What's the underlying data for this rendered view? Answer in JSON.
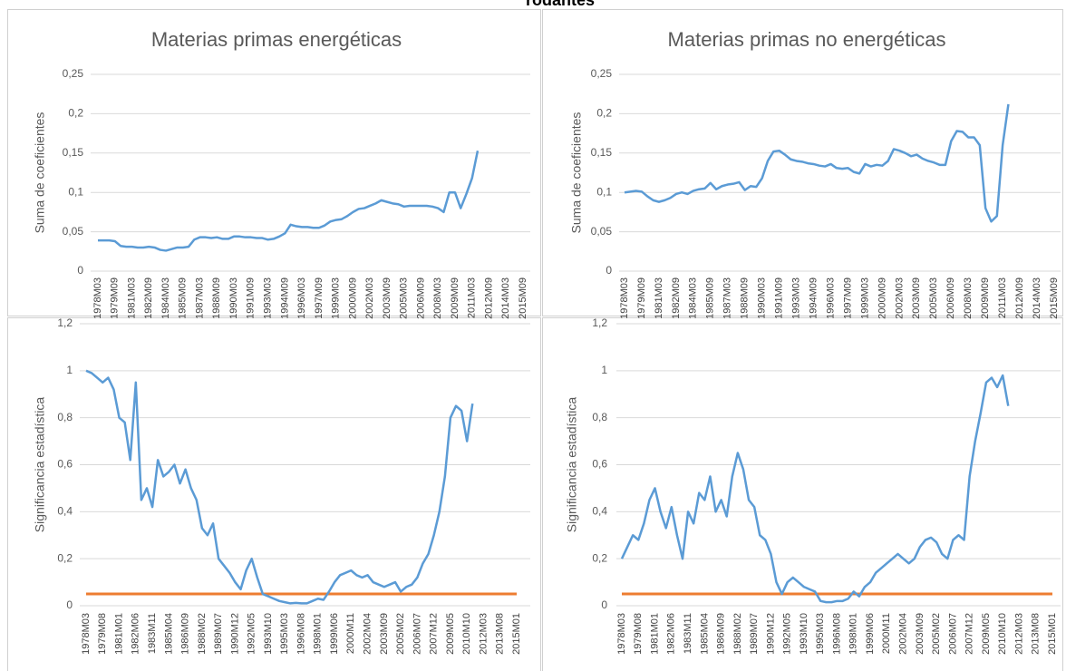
{
  "title": "rodantes",
  "chart_data": [
    {
      "type": "line",
      "title": "Materias primas energéticas",
      "y_label": "Suma de coeficientes",
      "categories": [
        "1978M03",
        null,
        null,
        "1979M09",
        null,
        null,
        "1981M03",
        null,
        null,
        "1982M09",
        null,
        null,
        "1984M03",
        null,
        null,
        "1985M09",
        null,
        null,
        "1987M03",
        null,
        null,
        "1988M09",
        null,
        null,
        "1990M03",
        null,
        null,
        "1991M09",
        null,
        null,
        "1993M03",
        null,
        null,
        "1994M09",
        null,
        null,
        "1996M03",
        null,
        null,
        "1997M09",
        null,
        null,
        "1999M03",
        null,
        null,
        "2000M09",
        null,
        null,
        "2002M03",
        null,
        null,
        "2003M09",
        null,
        null,
        "2005M03",
        null,
        null,
        "2006M09",
        null,
        null,
        "2008M03",
        null,
        null,
        "2009M09",
        null,
        null,
        "2011M03",
        null,
        null,
        "2012M09",
        null,
        null,
        "2014M03",
        null,
        null,
        "2015M09"
      ],
      "series": [
        {
          "color": "#5b9bd5",
          "values": [
            0.039,
            0.039,
            0.039,
            0.038,
            0.032,
            0.031,
            0.031,
            0.03,
            0.03,
            0.031,
            0.03,
            0.027,
            0.026,
            0.028,
            0.03,
            0.03,
            0.031,
            0.04,
            0.043,
            0.043,
            0.042,
            0.043,
            0.041,
            0.041,
            0.044,
            0.044,
            0.043,
            0.043,
            0.042,
            0.042,
            0.04,
            0.041,
            0.044,
            0.048,
            0.059,
            0.057,
            0.056,
            0.056,
            0.055,
            0.055,
            0.058,
            0.063,
            0.065,
            0.066,
            0.07,
            0.075,
            0.079,
            0.08,
            0.083,
            0.086,
            0.09,
            0.088,
            0.086,
            0.085,
            0.082,
            0.083,
            0.083,
            0.083,
            0.083,
            0.082,
            0.08,
            0.075,
            0.1,
            0.1,
            0.08,
            0.098,
            0.118,
            0.153,
            null,
            null,
            null,
            null,
            null,
            null,
            null,
            null
          ]
        }
      ],
      "ylim": [
        0,
        0.25
      ],
      "yticks": [
        0,
        {
          "value": 0.05,
          "label": "0,05"
        },
        {
          "value": 0.1,
          "label": "0,1"
        },
        {
          "value": 0.15,
          "label": "0,15"
        },
        {
          "value": 0.2,
          "label": "0,2"
        },
        {
          "value": 0.25,
          "label": "0,25"
        }
      ],
      "grid": true
    },
    {
      "type": "line",
      "title": "Materias primas no energéticas",
      "y_label": "Suma de coeficientes",
      "categories": [
        "1978M03",
        null,
        null,
        "1979M09",
        null,
        null,
        "1981M03",
        null,
        null,
        "1982M09",
        null,
        null,
        "1984M03",
        null,
        null,
        "1985M09",
        null,
        null,
        "1987M03",
        null,
        null,
        "1988M09",
        null,
        null,
        "1990M03",
        null,
        null,
        "1991M09",
        null,
        null,
        "1993M03",
        null,
        null,
        "1994M09",
        null,
        null,
        "1996M03",
        null,
        null,
        "1997M09",
        null,
        null,
        "1999M03",
        null,
        null,
        "2000M09",
        null,
        null,
        "2002M03",
        null,
        null,
        "2003M09",
        null,
        null,
        "2005M03",
        null,
        null,
        "2006M09",
        null,
        null,
        "2008M03",
        null,
        null,
        "2009M09",
        null,
        null,
        "2011M03",
        null,
        null,
        "2012M09",
        null,
        null,
        "2014M03",
        null,
        null,
        "2015M09"
      ],
      "series": [
        {
          "color": "#5b9bd5",
          "values": [
            0.1,
            0.101,
            0.102,
            0.101,
            0.095,
            0.09,
            0.088,
            0.09,
            0.093,
            0.098,
            0.1,
            0.098,
            0.102,
            0.104,
            0.105,
            0.112,
            0.104,
            0.108,
            0.11,
            0.111,
            0.113,
            0.103,
            0.108,
            0.107,
            0.118,
            0.14,
            0.152,
            0.153,
            0.148,
            0.142,
            0.14,
            0.139,
            0.137,
            0.136,
            0.134,
            0.133,
            0.136,
            0.131,
            0.13,
            0.131,
            0.126,
            0.124,
            0.136,
            0.133,
            0.135,
            0.134,
            0.14,
            0.155,
            0.153,
            0.15,
            0.146,
            0.148,
            0.143,
            0.14,
            0.138,
            0.135,
            0.135,
            0.165,
            0.178,
            0.177,
            0.17,
            0.17,
            0.16,
            0.08,
            0.063,
            0.07,
            0.16,
            0.212,
            null,
            null,
            null,
            null,
            null,
            null,
            null,
            null
          ]
        }
      ],
      "ylim": [
        0,
        0.25
      ],
      "yticks": [
        0,
        {
          "value": 0.05,
          "label": "0,05"
        },
        {
          "value": 0.1,
          "label": "0,1"
        },
        {
          "value": 0.15,
          "label": "0,15"
        },
        {
          "value": 0.2,
          "label": "0,2"
        },
        {
          "value": 0.25,
          "label": "0,25"
        }
      ],
      "grid": true
    },
    {
      "type": "line",
      "y_label": "Significancia estadística",
      "categories": [
        "1978M03",
        null,
        null,
        "1979M08",
        null,
        null,
        "1981M01",
        null,
        null,
        "1982M06",
        null,
        null,
        "1983M11",
        null,
        null,
        "1985M04",
        null,
        null,
        "1986M09",
        null,
        null,
        "1988M02",
        null,
        null,
        "1989M07",
        null,
        null,
        "1990M12",
        null,
        null,
        "1992M05",
        null,
        null,
        "1993M10",
        null,
        null,
        "1995M03",
        null,
        null,
        "1996M08",
        null,
        null,
        "1998M01",
        null,
        null,
        "1999M06",
        null,
        null,
        "2000M11",
        null,
        null,
        "2002M04",
        null,
        null,
        "2003M09",
        null,
        null,
        "2005M02",
        null,
        null,
        "2006M07",
        null,
        null,
        "2007M12",
        null,
        null,
        "2009M05",
        null,
        null,
        "2010M10",
        null,
        null,
        "2012M03",
        null,
        null,
        "2013M08",
        null,
        null,
        "2015M01"
      ],
      "series": [
        {
          "color": "#5b9bd5",
          "values": [
            1,
            0.99,
            0.97,
            0.95,
            0.97,
            0.92,
            0.8,
            0.78,
            0.62,
            0.95,
            0.45,
            0.5,
            0.42,
            0.62,
            0.55,
            0.57,
            0.6,
            0.52,
            0.58,
            0.5,
            0.45,
            0.33,
            0.3,
            0.35,
            0.2,
            0.17,
            0.14,
            0.1,
            0.07,
            0.15,
            0.2,
            0.12,
            0.05,
            0.04,
            0.03,
            0.02,
            0.015,
            0.01,
            0.012,
            0.01,
            0.01,
            0.02,
            0.03,
            0.025,
            0.06,
            0.1,
            0.13,
            0.14,
            0.15,
            0.13,
            0.12,
            0.13,
            0.1,
            0.09,
            0.08,
            0.09,
            0.1,
            0.06,
            0.08,
            0.09,
            0.12,
            0.18,
            0.22,
            0.3,
            0.4,
            0.55,
            0.8,
            0.85,
            0.83,
            0.7,
            0.86,
            null,
            null,
            null,
            null,
            null,
            null,
            null,
            null
          ]
        }
      ],
      "hline": {
        "value": 0.05,
        "color": "#ed7d31"
      },
      "ylim": [
        0,
        1.2
      ],
      "yticks": [
        0,
        {
          "value": 0.2,
          "label": "0,2"
        },
        {
          "value": 0.4,
          "label": "0,4"
        },
        {
          "value": 0.6,
          "label": "0,6"
        },
        {
          "value": 0.8,
          "label": "0,8"
        },
        1,
        {
          "value": 1.2,
          "label": "1,2"
        }
      ],
      "grid": true
    },
    {
      "type": "line",
      "y_label": "Significancia estadística",
      "categories": [
        "1978M03",
        null,
        null,
        "1979M08",
        null,
        null,
        "1981M01",
        null,
        null,
        "1982M06",
        null,
        null,
        "1983M11",
        null,
        null,
        "1985M04",
        null,
        null,
        "1986M09",
        null,
        null,
        "1988M02",
        null,
        null,
        "1989M07",
        null,
        null,
        "1990M12",
        null,
        null,
        "1992M05",
        null,
        null,
        "1993M10",
        null,
        null,
        "1995M03",
        null,
        null,
        "1996M08",
        null,
        null,
        "1998M01",
        null,
        null,
        "1999M06",
        null,
        null,
        "2000M11",
        null,
        null,
        "2002M04",
        null,
        null,
        "2003M09",
        null,
        null,
        "2005M02",
        null,
        null,
        "2006M07",
        null,
        null,
        "2007M12",
        null,
        null,
        "2009M05",
        null,
        null,
        "2010M10",
        null,
        null,
        "2012M03",
        null,
        null,
        "2013M08",
        null,
        null,
        "2015M01"
      ],
      "series": [
        {
          "color": "#5b9bd5",
          "values": [
            0.2,
            0.25,
            0.3,
            0.28,
            0.35,
            0.45,
            0.5,
            0.4,
            0.33,
            0.42,
            0.3,
            0.2,
            0.4,
            0.35,
            0.48,
            0.45,
            0.55,
            0.4,
            0.45,
            0.38,
            0.55,
            0.65,
            0.58,
            0.45,
            0.42,
            0.3,
            0.28,
            0.22,
            0.1,
            0.05,
            0.1,
            0.12,
            0.1,
            0.08,
            0.07,
            0.06,
            0.02,
            0.015,
            0.015,
            0.02,
            0.02,
            0.03,
            0.06,
            0.04,
            0.08,
            0.1,
            0.14,
            0.16,
            0.18,
            0.2,
            0.22,
            0.2,
            0.18,
            0.2,
            0.25,
            0.28,
            0.29,
            0.27,
            0.22,
            0.2,
            0.28,
            0.3,
            0.28,
            0.55,
            0.7,
            0.82,
            0.95,
            0.97,
            0.93,
            0.98,
            0.85,
            null,
            null,
            null,
            null,
            null,
            null,
            null,
            null
          ]
        }
      ],
      "hline": {
        "value": 0.05,
        "color": "#ed7d31"
      },
      "ylim": [
        0,
        1.2
      ],
      "yticks": [
        0,
        {
          "value": 0.2,
          "label": "0,2"
        },
        {
          "value": 0.4,
          "label": "0,4"
        },
        {
          "value": 0.6,
          "label": "0,6"
        },
        {
          "value": 0.8,
          "label": "0,8"
        },
        1,
        {
          "value": 1.2,
          "label": "1,2"
        }
      ],
      "grid": true
    }
  ]
}
